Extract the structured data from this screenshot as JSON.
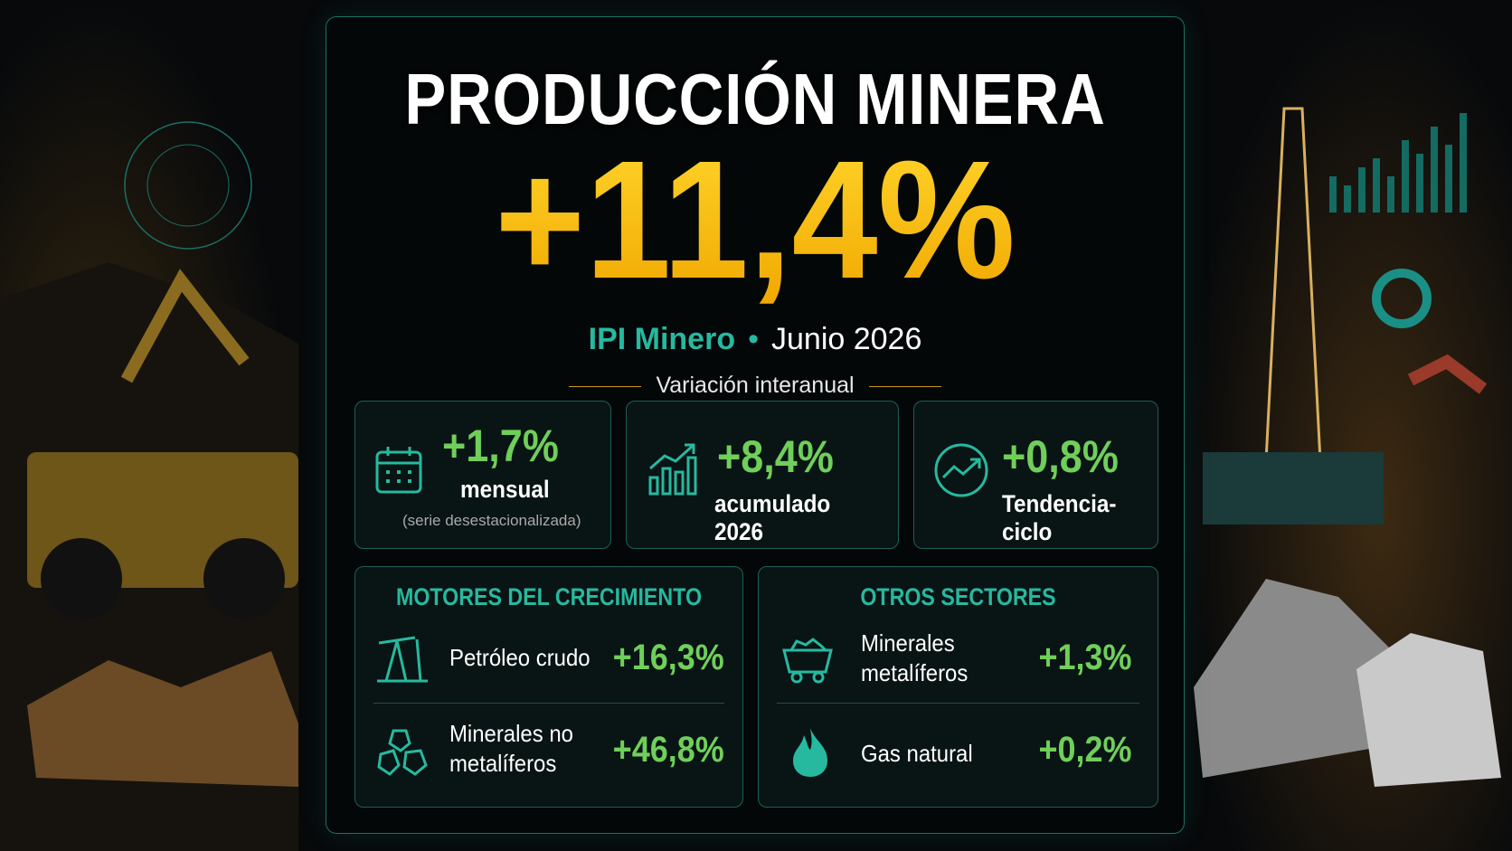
{
  "header": {
    "title": "PRODUCCIÓN MINERA",
    "headline": "+11,4%",
    "indicator": "IPI Minero",
    "period": "Junio 2026",
    "caption": "Variación interanual"
  },
  "cards": [
    {
      "value": "+1,7%",
      "label": "mensual",
      "note": "(serie desestacionalizada)"
    },
    {
      "value": "+8,4%",
      "label": "acumulado 2026"
    },
    {
      "value": "+0,8%",
      "label": "Tendencia-ciclo"
    }
  ],
  "sections": [
    {
      "title": "MOTORES DEL CRECIMIENTO",
      "items": [
        {
          "label": "Petróleo crudo",
          "value": "+16,3%"
        },
        {
          "label": "Minerales no metalíferos",
          "value": "+46,8%"
        }
      ]
    },
    {
      "title": "OTROS SECTORES",
      "items": [
        {
          "label": "Minerales metalíferos",
          "value": "+1,3%"
        },
        {
          "label": "Gas natural",
          "value": "+0,2%"
        }
      ]
    }
  ]
}
